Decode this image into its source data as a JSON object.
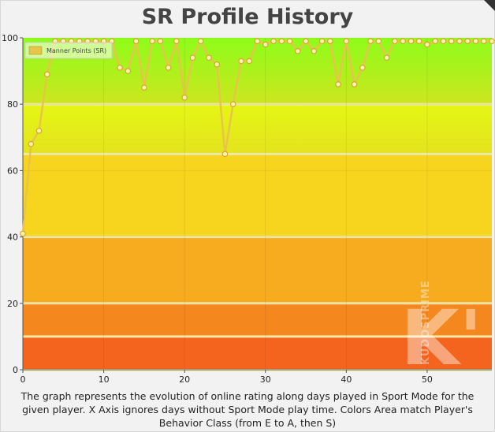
{
  "page": {
    "title": "SR Profile History",
    "caption": "The graph represents the evolution of online rating along days played in Sport Mode for the given player. X Axis ignores days without Sport Mode play time. Colors Area match Player's Behavior Class (from E to A, then S)",
    "watermark_text": "KUDOSPRIME",
    "watermark_letter": "K'"
  },
  "chart_data": {
    "type": "line",
    "title": "SR Profile History",
    "xlabel": "",
    "ylabel": "",
    "xlim": [
      0,
      58
    ],
    "ylim": [
      0,
      100
    ],
    "x_ticks": [
      0,
      10,
      20,
      30,
      40,
      50
    ],
    "y_ticks": [
      0,
      20,
      40,
      60,
      80,
      100
    ],
    "grid": true,
    "legend": {
      "position": "top-left",
      "entries": [
        "Manner Points (SR)"
      ]
    },
    "series": [
      {
        "name": "Manner Points (SR)",
        "color": "#e8c44a",
        "values": [
          41,
          68,
          72,
          89,
          99,
          99,
          99,
          99,
          99,
          99,
          99,
          99,
          91,
          90,
          99,
          85,
          99,
          99,
          91,
          99,
          82,
          94,
          99,
          94,
          92,
          65,
          80,
          93,
          93,
          99,
          98,
          99,
          99,
          99,
          96,
          99,
          96,
          99,
          99,
          86,
          99,
          86,
          91,
          99,
          99,
          94,
          99,
          99,
          99,
          99,
          98,
          99,
          99,
          99,
          99,
          99,
          99,
          99,
          99
        ]
      }
    ],
    "bands": [
      {
        "from": 0,
        "to": 10,
        "color": "#f5641e"
      },
      {
        "from": 10,
        "to": 20,
        "color": "#f4871e"
      },
      {
        "from": 20,
        "to": 40,
        "color": "#f7ab1e"
      },
      {
        "from": 40,
        "to": 65,
        "color": "#f7d41e"
      },
      {
        "from": 65,
        "to": 80,
        "color": "#e3e31e"
      },
      {
        "from": 80,
        "to": 100,
        "color": "#bfe81e"
      }
    ],
    "bands_dim_color": "#f0e8a8"
  }
}
